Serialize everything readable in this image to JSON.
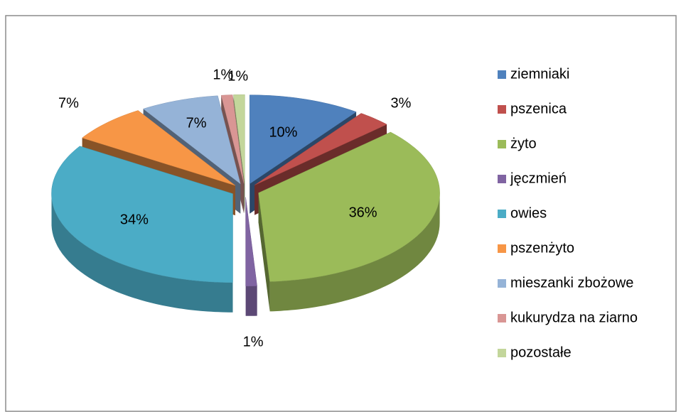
{
  "chart_data": {
    "type": "pie",
    "categories": [
      "ziemniaki",
      "pszenica",
      "żyto",
      "jęczmień",
      "owies",
      "pszenżyto",
      "mieszanki zbożowe",
      "kukurydza na ziarno",
      "pozostałe"
    ],
    "values": [
      10,
      3,
      36,
      1,
      34,
      7,
      7,
      1,
      1
    ],
    "value_labels": [
      "10%",
      "3%",
      "36%",
      "1%",
      "34%",
      "7%",
      "7%",
      "1%",
      "1%"
    ],
    "colors": [
      "#4F81BD",
      "#C0504D",
      "#9BBB59",
      "#8064A2",
      "#4BACC6",
      "#F79646",
      "#95B3D7",
      "#D99694",
      "#C3D69B"
    ],
    "legend": "right"
  }
}
